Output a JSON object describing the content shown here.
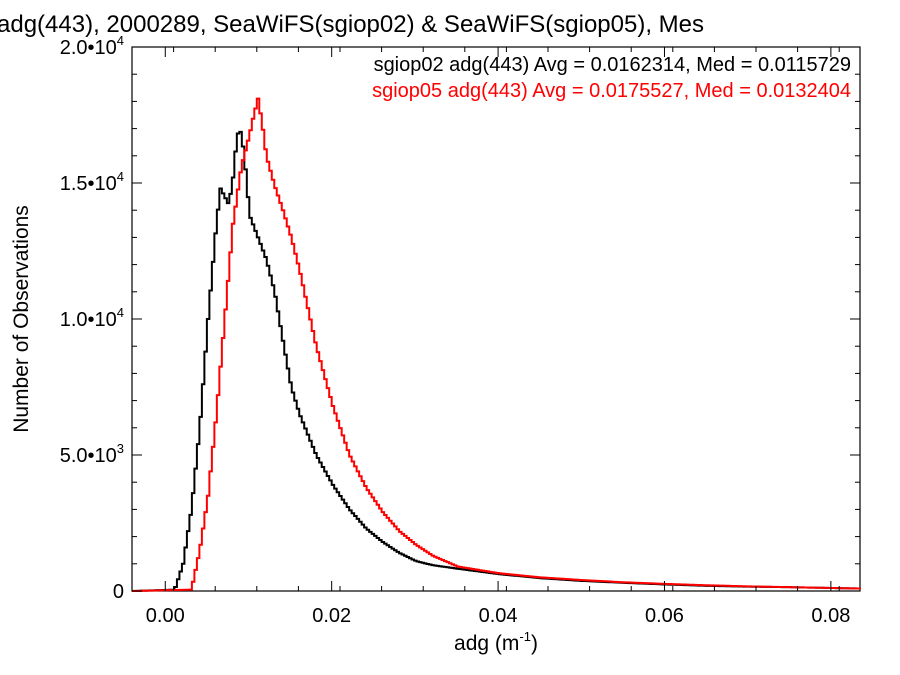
{
  "chart_data": {
    "type": "line",
    "title": "adg(443), 2000289, SeaWiFS(sgiop02) & SeaWiFS(sgiop05), Mes",
    "xlabel": "adg (m",
    "xlabel_sup": "-1",
    "xlabel_suffix": ")",
    "ylabel": "Number of Observations",
    "xlim": [
      -0.004,
      0.0835
    ],
    "ylim": [
      0,
      20000
    ],
    "x_ticks": [
      {
        "value": 0.0,
        "label": "0.00"
      },
      {
        "value": 0.02,
        "label": "0.02"
      },
      {
        "value": 0.04,
        "label": "0.04"
      },
      {
        "value": 0.06,
        "label": "0.06"
      },
      {
        "value": 0.08,
        "label": "0.08"
      }
    ],
    "y_ticks": [
      {
        "value": 0,
        "mantissa": "0",
        "exp": ""
      },
      {
        "value": 5000,
        "mantissa": "5.0•10",
        "exp": "3"
      },
      {
        "value": 10000,
        "mantissa": "1.0•10",
        "exp": "4"
      },
      {
        "value": 15000,
        "mantissa": "1.5•10",
        "exp": "4"
      },
      {
        "value": 20000,
        "mantissa": "2.0•10",
        "exp": "4"
      }
    ],
    "series": [
      {
        "name": "sgiop02 adg(443) Avg = 0.0162314, Med = 0.0115729",
        "color": "#000000",
        "x": [
          -0.004,
          0.001,
          0.002,
          0.003,
          0.004,
          0.005,
          0.006,
          0.0065,
          0.007,
          0.0075,
          0.008,
          0.0085,
          0.009,
          0.0095,
          0.01,
          0.011,
          0.012,
          0.013,
          0.014,
          0.015,
          0.016,
          0.018,
          0.02,
          0.022,
          0.024,
          0.026,
          0.028,
          0.03,
          0.032,
          0.035,
          0.04,
          0.045,
          0.05,
          0.055,
          0.06,
          0.065,
          0.07,
          0.075,
          0.08,
          0.0835
        ],
        "y": [
          0,
          50,
          1000,
          3000,
          6000,
          10000,
          13500,
          14800,
          14500,
          14200,
          15200,
          16800,
          16900,
          15500,
          13800,
          13000,
          12200,
          11000,
          9200,
          7500,
          6500,
          5000,
          3900,
          3000,
          2300,
          1800,
          1400,
          1100,
          950,
          820,
          620,
          470,
          370,
          300,
          240,
          190,
          160,
          140,
          110,
          90
        ]
      },
      {
        "name": "sgiop05 adg(443) Avg = 0.0175527, Med = 0.0132404",
        "color": "#ff0000",
        "x": [
          -0.004,
          0.003,
          0.004,
          0.005,
          0.006,
          0.007,
          0.008,
          0.009,
          0.01,
          0.0105,
          0.011,
          0.0115,
          0.012,
          0.013,
          0.014,
          0.015,
          0.016,
          0.018,
          0.02,
          0.022,
          0.024,
          0.026,
          0.028,
          0.03,
          0.032,
          0.035,
          0.04,
          0.045,
          0.05,
          0.055,
          0.06,
          0.065,
          0.07,
          0.075,
          0.08,
          0.0835
        ],
        "y": [
          0,
          50,
          1500,
          3500,
          6500,
          10000,
          13500,
          15600,
          16800,
          17500,
          18100,
          17200,
          16000,
          14900,
          14000,
          13000,
          11800,
          9000,
          6800,
          5000,
          3800,
          2900,
          2200,
          1700,
          1300,
          900,
          650,
          500,
          400,
          320,
          260,
          210,
          170,
          140,
          110,
          90
        ]
      }
    ],
    "legend_position": "top-right",
    "grid": false
  }
}
